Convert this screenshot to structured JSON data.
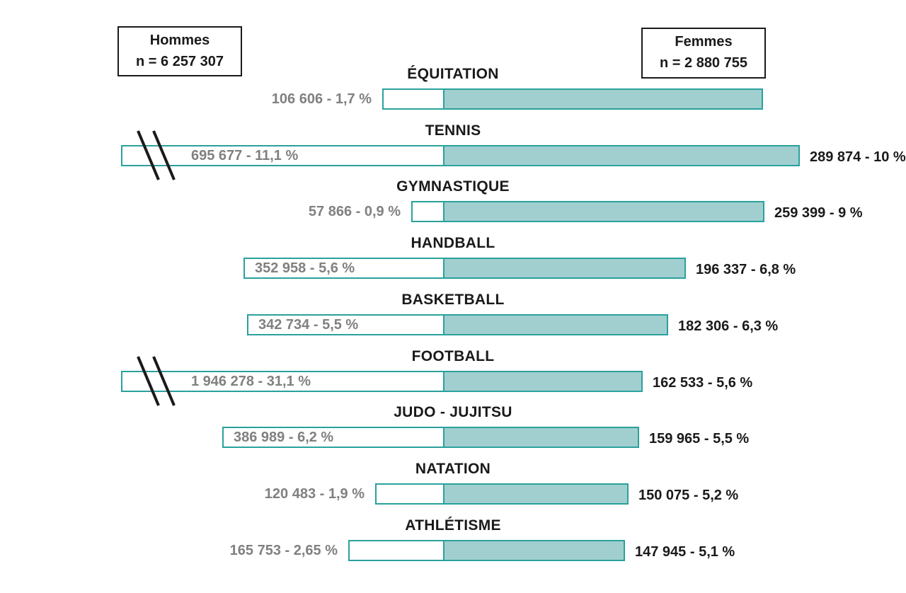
{
  "legend": {
    "men": {
      "label": "Hommes",
      "count": "n = 6 257 307"
    },
    "women": {
      "label": "Femmes",
      "count": "n = 2 880 755"
    }
  },
  "colors": {
    "men_fill": "#ffffff",
    "women_fill": "#a1cfcf",
    "border": "#2aa19c",
    "men_text": "#808080",
    "women_text": "#1a1a1a"
  },
  "chart_data": {
    "type": "bar",
    "orientation": "horizontal-diverging",
    "categories": [
      "ÉQUITATION",
      "TENNIS",
      "GYMNASTIQUE",
      "HANDBALL",
      "BASKETBALL",
      "FOOTBALL",
      "JUDO - JUJITSU",
      "NATATION",
      "ATHLÉTISME"
    ],
    "series": [
      {
        "name": "Hommes",
        "values": [
          106606,
          695677,
          57866,
          352958,
          342734,
          1946278,
          386989,
          120483,
          165753
        ],
        "percent": [
          1.7,
          11.1,
          0.9,
          5.6,
          5.5,
          31.1,
          6.2,
          1.9,
          2.65
        ],
        "labels": [
          "106 606 - 1,7 %",
          "695 677 - 11,1 %",
          "57 866 - 0,9 %",
          "352 958 - 5,6 %",
          "342 734 - 5,5 %",
          "1 946 278 - 31,1 %",
          "386 989 - 6,2 %",
          "120 483 - 1,9 %",
          "165 753 - 2,65 %"
        ],
        "axis_break": [
          false,
          true,
          false,
          false,
          false,
          true,
          false,
          false,
          false
        ]
      },
      {
        "name": "Femmes",
        "values": [
          null,
          289874,
          259399,
          196337,
          182306,
          162533,
          159965,
          150075,
          147945
        ],
        "percent": [
          null,
          10,
          9,
          6.8,
          6.3,
          5.6,
          5.5,
          5.2,
          5.1
        ],
        "labels": [
          "",
          "289 874 - 10 %",
          "259 399 - 9 %",
          "196 337 - 6,8 %",
          "182 306 - 6,3 %",
          "162 533 - 5,6 %",
          "159 965 - 5,5 %",
          "150 075 - 5,2 %",
          "147 945 - 5,1 %"
        ]
      }
    ]
  }
}
